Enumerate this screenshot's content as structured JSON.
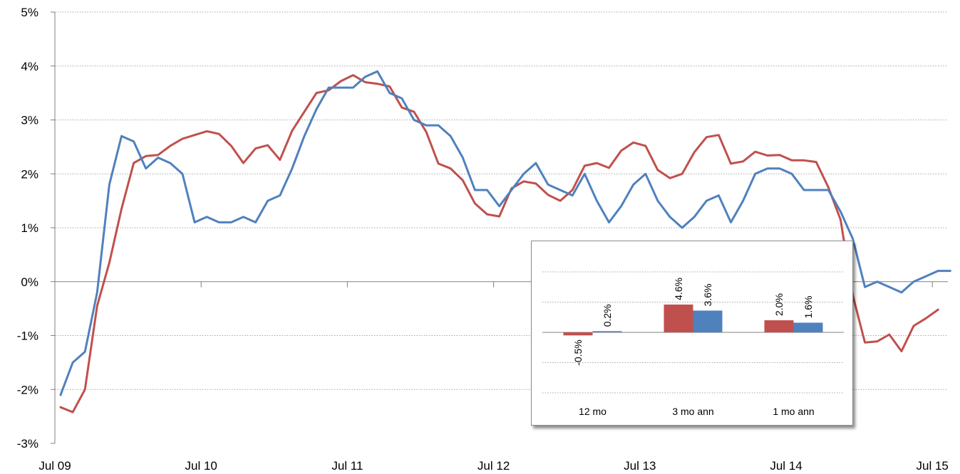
{
  "colors": {
    "red_series": "#c0504d",
    "blue_series": "#4f81bd",
    "grid": "#a6a6a6",
    "axis": "#808080"
  },
  "chart_data": [
    {
      "type": "line",
      "title": "",
      "xlabel": "",
      "ylabel": "",
      "ylim": [
        -3,
        5
      ],
      "yticks": [
        "-3%",
        "-2%",
        "-1%",
        "0%",
        "1%",
        "2%",
        "3%",
        "4%",
        "5%"
      ],
      "ytick_values": [
        -3,
        -2,
        -1,
        0,
        1,
        2,
        3,
        4,
        5
      ],
      "xticks": [
        "Jul 09",
        "Jul 10",
        "Jul 11",
        "Jul 12",
        "Jul 13",
        "Jul 14",
        "Jul 15"
      ],
      "grid": true,
      "x_start": "Jul 09",
      "series": [
        {
          "color": "#c0504d",
          "values": [
            -2.33,
            -2.42,
            -2.0,
            -0.45,
            0.35,
            1.35,
            2.2,
            2.33,
            2.35,
            2.52,
            2.65,
            2.72,
            2.79,
            2.74,
            2.52,
            2.2,
            2.47,
            2.53,
            2.26,
            2.8,
            3.15,
            3.5,
            3.55,
            3.72,
            3.83,
            3.7,
            3.67,
            3.62,
            3.23,
            3.15,
            2.78,
            2.19,
            2.1,
            1.88,
            1.45,
            1.25,
            1.21,
            1.73,
            1.86,
            1.82,
            1.61,
            1.5,
            1.7,
            2.15,
            2.2,
            2.11,
            2.43,
            2.58,
            2.52,
            2.07,
            1.92,
            2.0,
            2.4,
            2.68,
            2.72,
            2.19,
            2.23,
            2.41,
            2.34,
            2.35,
            2.25,
            2.25,
            2.22,
            1.75,
            1.15,
            -0.25,
            -1.13,
            -1.11,
            -0.98,
            -1.29,
            -0.82,
            -0.68,
            -0.52
          ]
        },
        {
          "color": "#4f81bd",
          "values": [
            -2.1,
            -1.5,
            -1.3,
            -0.2,
            1.8,
            2.7,
            2.6,
            2.1,
            2.3,
            2.2,
            2.0,
            1.1,
            1.2,
            1.1,
            1.1,
            1.2,
            1.1,
            1.5,
            1.6,
            2.1,
            2.7,
            3.2,
            3.6,
            3.6,
            3.6,
            3.8,
            3.9,
            3.5,
            3.4,
            3.0,
            2.9,
            2.9,
            2.7,
            2.3,
            1.7,
            1.7,
            1.4,
            1.7,
            2.0,
            2.2,
            1.8,
            1.7,
            1.6,
            2.0,
            1.5,
            1.1,
            1.4,
            1.8,
            2.0,
            1.5,
            1.2,
            1.0,
            1.2,
            1.5,
            1.6,
            1.1,
            1.5,
            2.0,
            2.1,
            2.1,
            2.0,
            1.7,
            1.7,
            1.7,
            1.3,
            0.8,
            -0.1,
            0.0,
            -0.1,
            -0.2,
            0.0,
            0.1,
            0.2,
            0.2
          ]
        }
      ]
    },
    {
      "type": "bar",
      "categories": [
        "12 mo",
        "3 mo ann",
        "1 mo ann"
      ],
      "ylim": [
        -5,
        10
      ],
      "grid": true,
      "series": [
        {
          "color": "#c0504d",
          "values": [
            -0.5,
            4.6,
            2.0
          ],
          "labels": [
            "-0.5%",
            "4.6%",
            "2.0%"
          ]
        },
        {
          "color": "#4f81bd",
          "values": [
            0.2,
            3.6,
            1.6
          ],
          "labels": [
            "0.2%",
            "3.6%",
            "1.6%"
          ]
        }
      ]
    }
  ]
}
